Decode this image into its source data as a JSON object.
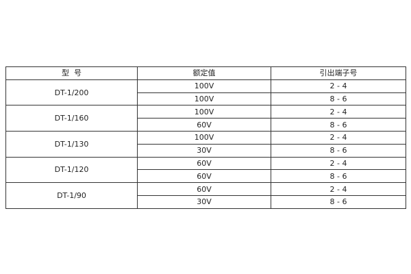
{
  "headers": [
    "型  号",
    "额定值",
    "引出端子号"
  ],
  "groups": [
    {
      "model": "DT-1/200",
      "rows": [
        {
          "rated": "100V",
          "terminals": "2 - 4"
        },
        {
          "rated": "100V",
          "terminals": "8 - 6"
        }
      ]
    },
    {
      "model": "DT-1/160",
      "rows": [
        {
          "rated": "100V",
          "terminals": "2 - 4"
        },
        {
          "rated": "60V",
          "terminals": "8 - 6"
        }
      ]
    },
    {
      "model": "DT-1/130",
      "rows": [
        {
          "rated": "100V",
          "terminals": "2 - 4"
        },
        {
          "rated": "30V",
          "terminals": "8 - 6"
        }
      ]
    },
    {
      "model": "DT-1/120",
      "rows": [
        {
          "rated": "60V",
          "terminals": "2 - 4"
        },
        {
          "rated": "60V",
          "terminals": "8 - 6"
        }
      ]
    },
    {
      "model": "DT-1/90",
      "rows": [
        {
          "rated": "60V",
          "terminals": "2 - 4"
        },
        {
          "rated": "30V",
          "terminals": "8 - 6"
        }
      ]
    }
  ]
}
